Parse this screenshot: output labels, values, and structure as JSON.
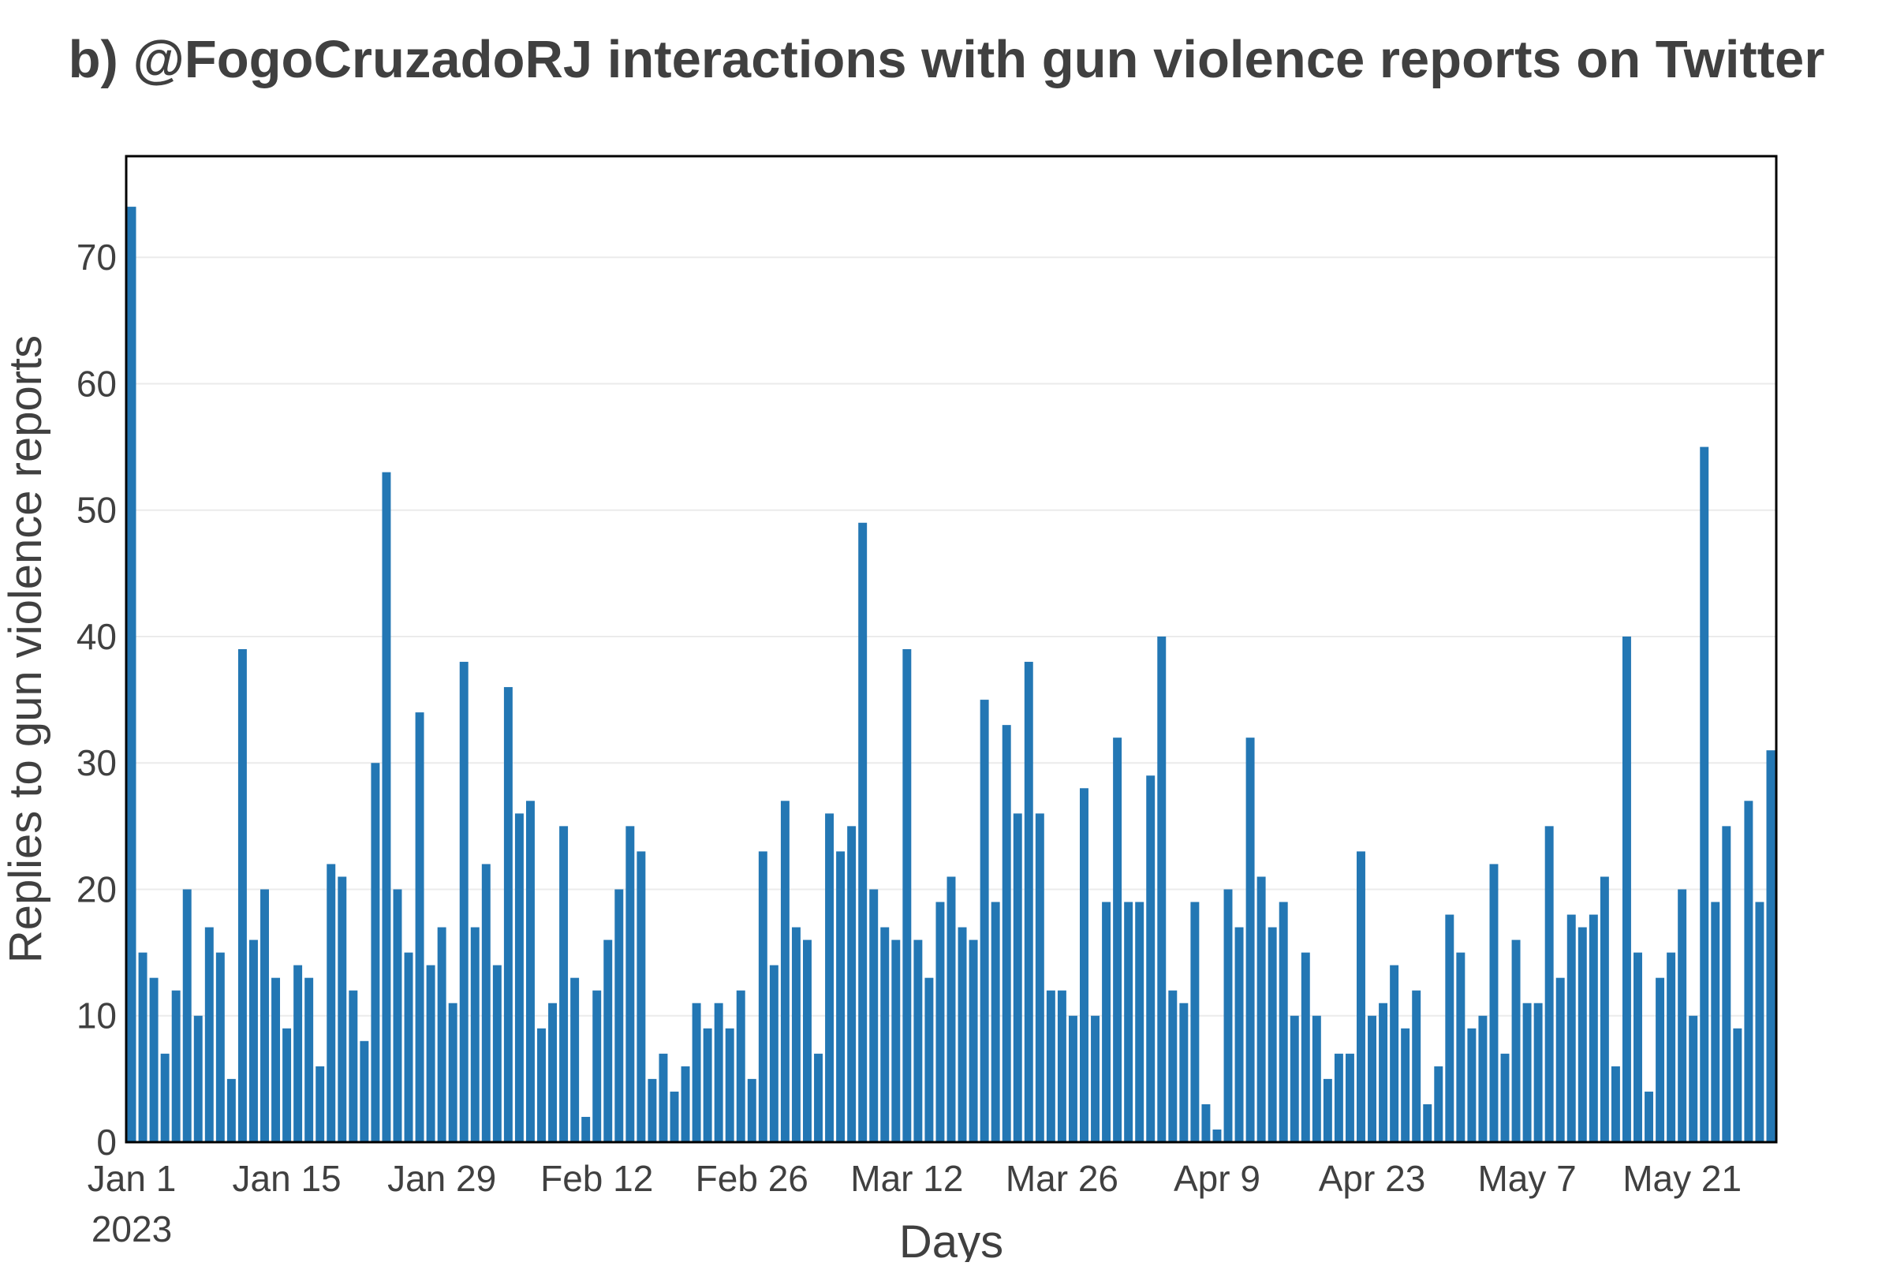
{
  "chart_data": {
    "type": "bar",
    "title": "b) @FogoCruzadoRJ interactions with gun violence reports on Twitter",
    "xlabel": "Days",
    "ylabel": "Replies to gun violence reports",
    "x_start": "2023-01-01",
    "x_ticks": [
      {
        "date": "2023-01-01",
        "label": "Jan 1",
        "sublabel": "2023"
      },
      {
        "date": "2023-01-15",
        "label": "Jan 15"
      },
      {
        "date": "2023-01-29",
        "label": "Jan 29"
      },
      {
        "date": "2023-02-12",
        "label": "Feb 12"
      },
      {
        "date": "2023-02-26",
        "label": "Feb 26"
      },
      {
        "date": "2023-03-12",
        "label": "Mar 12"
      },
      {
        "date": "2023-03-26",
        "label": "Mar 26"
      },
      {
        "date": "2023-04-09",
        "label": "Apr 9"
      },
      {
        "date": "2023-04-23",
        "label": "Apr 23"
      },
      {
        "date": "2023-05-07",
        "label": "May 7"
      },
      {
        "date": "2023-05-21",
        "label": "May 21"
      }
    ],
    "y_ticks": [
      0,
      10,
      20,
      30,
      40,
      50,
      60,
      70
    ],
    "ylim": [
      0,
      78
    ],
    "grid": true,
    "bar_color": "#2377b4",
    "values": [
      74,
      15,
      13,
      7,
      12,
      20,
      10,
      17,
      15,
      5,
      39,
      16,
      20,
      13,
      9,
      14,
      13,
      6,
      22,
      21,
      12,
      8,
      30,
      53,
      20,
      15,
      34,
      14,
      17,
      11,
      38,
      17,
      22,
      14,
      36,
      26,
      27,
      9,
      11,
      25,
      13,
      2,
      12,
      16,
      20,
      25,
      23,
      5,
      7,
      4,
      6,
      11,
      9,
      11,
      9,
      12,
      5,
      23,
      14,
      27,
      17,
      16,
      7,
      26,
      23,
      25,
      49,
      20,
      17,
      16,
      39,
      16,
      13,
      19,
      21,
      17,
      16,
      35,
      19,
      33,
      26,
      38,
      26,
      12,
      12,
      10,
      28,
      10,
      19,
      32,
      19,
      19,
      29,
      40,
      12,
      11,
      19,
      3,
      1,
      20,
      17,
      32,
      21,
      17,
      19,
      10,
      15,
      10,
      5,
      7,
      7,
      23,
      10,
      11,
      14,
      9,
      12,
      3,
      6,
      18,
      15,
      9,
      10,
      22,
      7,
      16,
      11,
      11,
      25,
      13,
      18,
      17,
      18,
      21,
      6,
      40,
      15,
      4,
      13,
      15,
      20,
      10,
      55,
      19,
      25,
      9,
      27,
      19,
      31
    ]
  }
}
